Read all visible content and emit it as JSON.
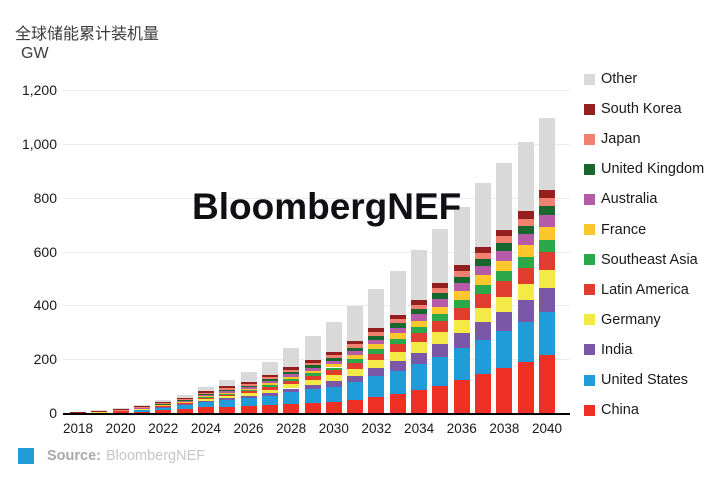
{
  "title": "全球储能累计装机量",
  "unit_label": "GW",
  "watermark": "BloombergNEF",
  "source": {
    "label": "Source:",
    "value": "BloombergNEF",
    "swatch_color": "#209cd8"
  },
  "colors": {
    "china": "#ee3124",
    "united_states": "#209cd8",
    "india": "#7b57a8",
    "germany": "#f3ea47",
    "latin_america": "#e03c30",
    "southeast_asia": "#2ba84a",
    "france": "#fcc62d",
    "australia": "#b55ba8",
    "united_kingdom": "#17672f",
    "japan": "#f0806f",
    "south_korea": "#941f1f",
    "other": "#d9d9d9",
    "gridline": "#ececec",
    "axis": "#000000"
  },
  "legend": {
    "position": "right",
    "items": [
      {
        "label": "Other",
        "color": "#d9d9d9"
      },
      {
        "label": "South Korea",
        "color": "#941f1f"
      },
      {
        "label": "Japan",
        "color": "#f0806f"
      },
      {
        "label": "United Kingdom",
        "color": "#17672f"
      },
      {
        "label": "Australia",
        "color": "#b55ba8"
      },
      {
        "label": "France",
        "color": "#fcc62d"
      },
      {
        "label": "Southeast Asia",
        "color": "#2ba84a"
      },
      {
        "label": "Latin America",
        "color": "#e03c30"
      },
      {
        "label": "Germany",
        "color": "#f3ea47"
      },
      {
        "label": "India",
        "color": "#7b57a8"
      },
      {
        "label": "United States",
        "color": "#209cd8"
      },
      {
        "label": "China",
        "color": "#ee3124"
      }
    ]
  },
  "chart_data": {
    "type": "bar",
    "stacked": true,
    "title": "全球储能累计装机量",
    "ylabel": "GW",
    "xlabel": "",
    "ylim": [
      0,
      1200
    ],
    "grid": true,
    "legend_position": "right",
    "x": [
      2018,
      2019,
      2020,
      2021,
      2022,
      2023,
      2024,
      2025,
      2026,
      2027,
      2028,
      2029,
      2030,
      2031,
      2032,
      2033,
      2034,
      2035,
      2036,
      2037,
      2038,
      2039,
      2040
    ],
    "x_tick_labels": [
      "2018",
      "2020",
      "2022",
      "2024",
      "2026",
      "2028",
      "2030",
      "2032",
      "2034",
      "2036",
      "2038",
      "2040"
    ],
    "y_ticks": [
      0,
      200,
      400,
      600,
      800,
      1000,
      1200
    ],
    "y_tick_labels": [
      "0",
      "200",
      "400",
      "600",
      "800",
      "1,000",
      "1,200"
    ],
    "totals": [
      5.2,
      10,
      16.9,
      30.1,
      47.8,
      67,
      96.9,
      123.6,
      152,
      190.5,
      240,
      286,
      338,
      397,
      460,
      528,
      605,
      685,
      765,
      855,
      928,
      1005,
      1095
    ],
    "series": [
      {
        "name": "China",
        "color": "#ee3124",
        "values": [
          0.5,
          1.2,
          2.6,
          5.2,
          9.6,
          14,
          21,
          24,
          26,
          29,
          34,
          38,
          41,
          49,
          60,
          71,
          85,
          100,
          122,
          145,
          167,
          190,
          215
        ]
      },
      {
        "name": "United States",
        "color": "#209cd8",
        "values": [
          1.2,
          2.5,
          4.2,
          7.4,
          11.5,
          15.4,
          21,
          26,
          30,
          36,
          44,
          50,
          57,
          65,
          76,
          86,
          97,
          108,
          119,
          128,
          136,
          148,
          160
        ]
      },
      {
        "name": "India",
        "color": "#7b57a8",
        "values": [
          0.1,
          0.2,
          0.3,
          0.8,
          1.4,
          2.3,
          3.9,
          5.5,
          7.6,
          10,
          13,
          16,
          20,
          25,
          30,
          36,
          42,
          50,
          57,
          65,
          72,
          80,
          89
        ]
      },
      {
        "name": "Germany",
        "color": "#f3ea47",
        "values": [
          0.6,
          1.1,
          1.7,
          2.7,
          3.8,
          5,
          6.8,
          8.4,
          9.9,
          12,
          16,
          19,
          22,
          26,
          30,
          33,
          38,
          42,
          47,
          52,
          57,
          61,
          67
        ]
      },
      {
        "name": "Latin America",
        "color": "#e03c30",
        "values": [
          0.1,
          0.2,
          0.3,
          0.8,
          1.4,
          2.3,
          3.9,
          5.5,
          6.8,
          10,
          12,
          15,
          19,
          22,
          25,
          30,
          35,
          41,
          46,
          52,
          57,
          61,
          67
        ]
      },
      {
        "name": "Southeast Asia",
        "color": "#2ba84a",
        "values": [
          0.1,
          0.1,
          0.2,
          0.4,
          0.7,
          1.2,
          1.9,
          2.8,
          3.8,
          6,
          7,
          9,
          10,
          13,
          16,
          19,
          22,
          26,
          29,
          33,
          37,
          41,
          45
        ]
      },
      {
        "name": "France",
        "color": "#fcc62d",
        "values": [
          0.1,
          0.2,
          0.3,
          0.7,
          1.2,
          1.8,
          2.9,
          3.8,
          4.6,
          7,
          8,
          10,
          12,
          15,
          18,
          21,
          24,
          28,
          32,
          36,
          39,
          43,
          48
        ]
      },
      {
        "name": "Australia",
        "color": "#b55ba8",
        "values": [
          0.3,
          0.6,
          1,
          1.7,
          2.6,
          3.5,
          4.9,
          5.8,
          6.8,
          9,
          11,
          12,
          14,
          16,
          18,
          21,
          24,
          28,
          31,
          35,
          38,
          41,
          45
        ]
      },
      {
        "name": "United Kingdom",
        "color": "#17672f",
        "values": [
          0.3,
          0.5,
          0.9,
          1.4,
          2.2,
          2.8,
          3.9,
          4.6,
          5.3,
          6,
          7,
          9,
          10,
          12,
          14,
          16,
          18,
          21,
          23,
          26,
          28,
          30,
          33
        ]
      },
      {
        "name": "Japan",
        "color": "#f0806f",
        "values": [
          0.6,
          1,
          1.5,
          2.2,
          2.9,
          3.5,
          4.9,
          5.5,
          6.1,
          7,
          8,
          9,
          10,
          12,
          14,
          15,
          17,
          19,
          21,
          23,
          25,
          27,
          30
        ]
      },
      {
        "name": "South Korea",
        "color": "#941f1f",
        "values": [
          1.1,
          1.6,
          2,
          3.2,
          4.3,
          5,
          6.8,
          7.4,
          7.6,
          8,
          10,
          11,
          12,
          13,
          14,
          15,
          17,
          19,
          21,
          23,
          25,
          27,
          30
        ]
      },
      {
        "name": "Other",
        "color": "#d9d9d9",
        "values": [
          0.2,
          0.8,
          1.9,
          3.6,
          6.2,
          10.2,
          15,
          24,
          37.5,
          50,
          70,
          88,
          111,
          129,
          145,
          165,
          186,
          203,
          217,
          237,
          247,
          256,
          266
        ]
      }
    ]
  }
}
